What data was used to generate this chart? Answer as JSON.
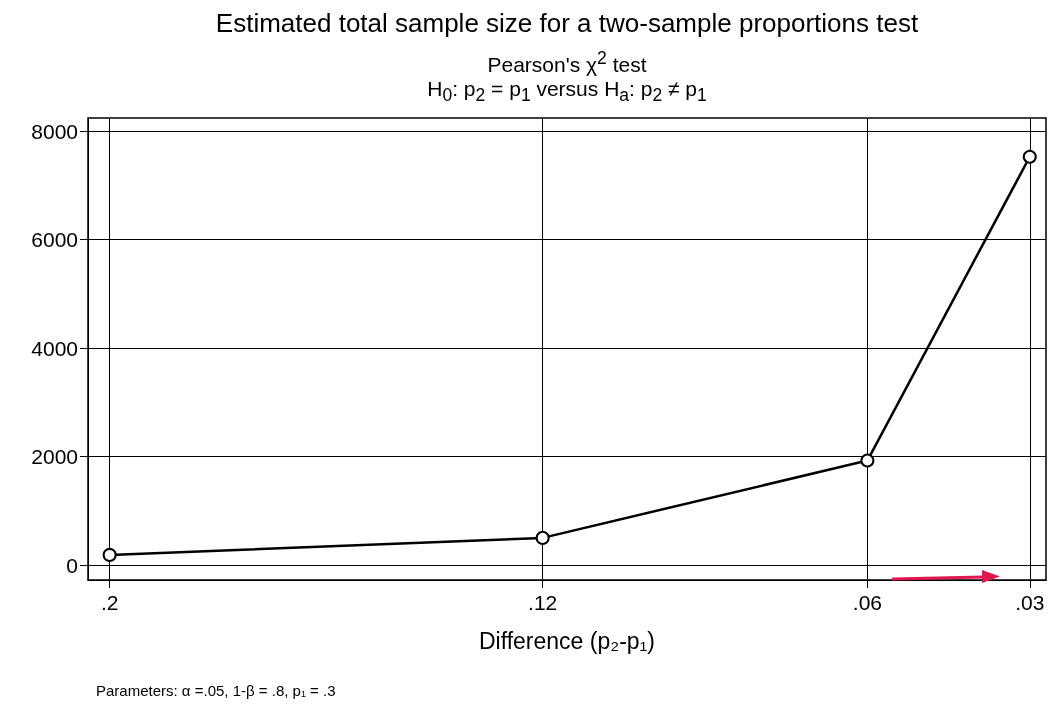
{
  "chart_data": {
    "type": "line",
    "title": "Estimated total sample size for a two-sample proportions test",
    "subtitle": "Pearson's χ$^{2}$ test\nH$_{0}$: p$_{2}$ = p$_{1}$  versus  H$_{a}$: p$_{2}$ ≠ p$_{1}$",
    "xlabel": "Difference (p₂-p₁)",
    "x": [
      0.2,
      0.12,
      0.06,
      0.03
    ],
    "series": [
      {
        "color": "#000000",
        "values": [
          186,
          500,
          1926,
          7526
        ]
      }
    ],
    "xlim": [
      0.204,
      0.027
    ],
    "xticks": [
      {
        "value": 0.2,
        "label": ".2"
      },
      {
        "value": 0.12,
        "label": ".12"
      },
      {
        "value": 0.06,
        "label": ".06"
      },
      {
        "value": 0.03,
        "label": ".03"
      }
    ],
    "ylim": [
      -276,
      8240
    ],
    "yticks": [
      0,
      2000,
      4000,
      6000,
      8000
    ],
    "grid": true,
    "marker": "circle",
    "line_style": "solid",
    "annotations": [
      "Parameters: α =.05, 1-β = .8, p₁ = .3"
    ]
  }
}
